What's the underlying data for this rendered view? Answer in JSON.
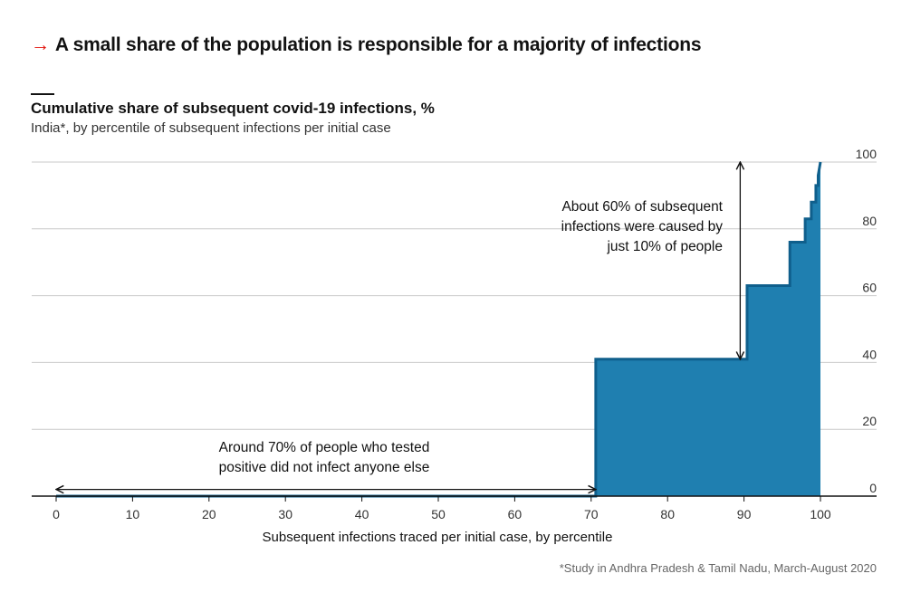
{
  "headline": {
    "arrow": "→",
    "text": "A small share of the population is responsible for a majority of infections"
  },
  "colors": {
    "area": "#1f7fb0",
    "line": "#0f5f8c",
    "grid": "#c8c8c8",
    "axis": "#121212",
    "accent": "#e3120b"
  },
  "chart_data": {
    "type": "area",
    "title": "Cumulative share of subsequent covid-19 infections, %",
    "subtitle": "India*, by percentile of subsequent infections per initial case",
    "xlabel": "Subsequent infections traced per initial case, by percentile",
    "ylabel": "",
    "xlim": [
      0,
      100
    ],
    "ylim": [
      0,
      100
    ],
    "x_ticks": [
      0,
      10,
      20,
      30,
      40,
      50,
      60,
      70,
      80,
      90,
      100
    ],
    "y_ticks": [
      0,
      20,
      40,
      60,
      80,
      100
    ],
    "y_axis_position": "right",
    "grid": true,
    "step": true,
    "points": [
      {
        "x": 0,
        "y": 0
      },
      {
        "x": 70.6,
        "y": 0
      },
      {
        "x": 70.6,
        "y": 41
      },
      {
        "x": 90.4,
        "y": 41
      },
      {
        "x": 90.4,
        "y": 63
      },
      {
        "x": 96,
        "y": 63
      },
      {
        "x": 96,
        "y": 76
      },
      {
        "x": 98,
        "y": 76
      },
      {
        "x": 98,
        "y": 83
      },
      {
        "x": 98.8,
        "y": 83
      },
      {
        "x": 98.8,
        "y": 88
      },
      {
        "x": 99.4,
        "y": 88
      },
      {
        "x": 99.4,
        "y": 93
      },
      {
        "x": 99.7,
        "y": 93
      },
      {
        "x": 99.7,
        "y": 96
      },
      {
        "x": 100,
        "y": 100
      }
    ],
    "annotations": [
      {
        "lines": [
          "Around 70% of people who tested",
          "positive did not infect anyone else"
        ],
        "arrow": {
          "from": [
            0,
            2
          ],
          "to": [
            70.6,
            2
          ],
          "direction": "horizontal"
        }
      },
      {
        "lines": [
          "About 60% of subsequent",
          "infections were caused by",
          "just 10% of people"
        ],
        "arrow": {
          "from": [
            89.5,
            41
          ],
          "to": [
            89.5,
            100
          ],
          "direction": "vertical"
        }
      }
    ]
  },
  "source": "*Study in Andhra Pradesh & Tamil Nadu, March-August 2020"
}
